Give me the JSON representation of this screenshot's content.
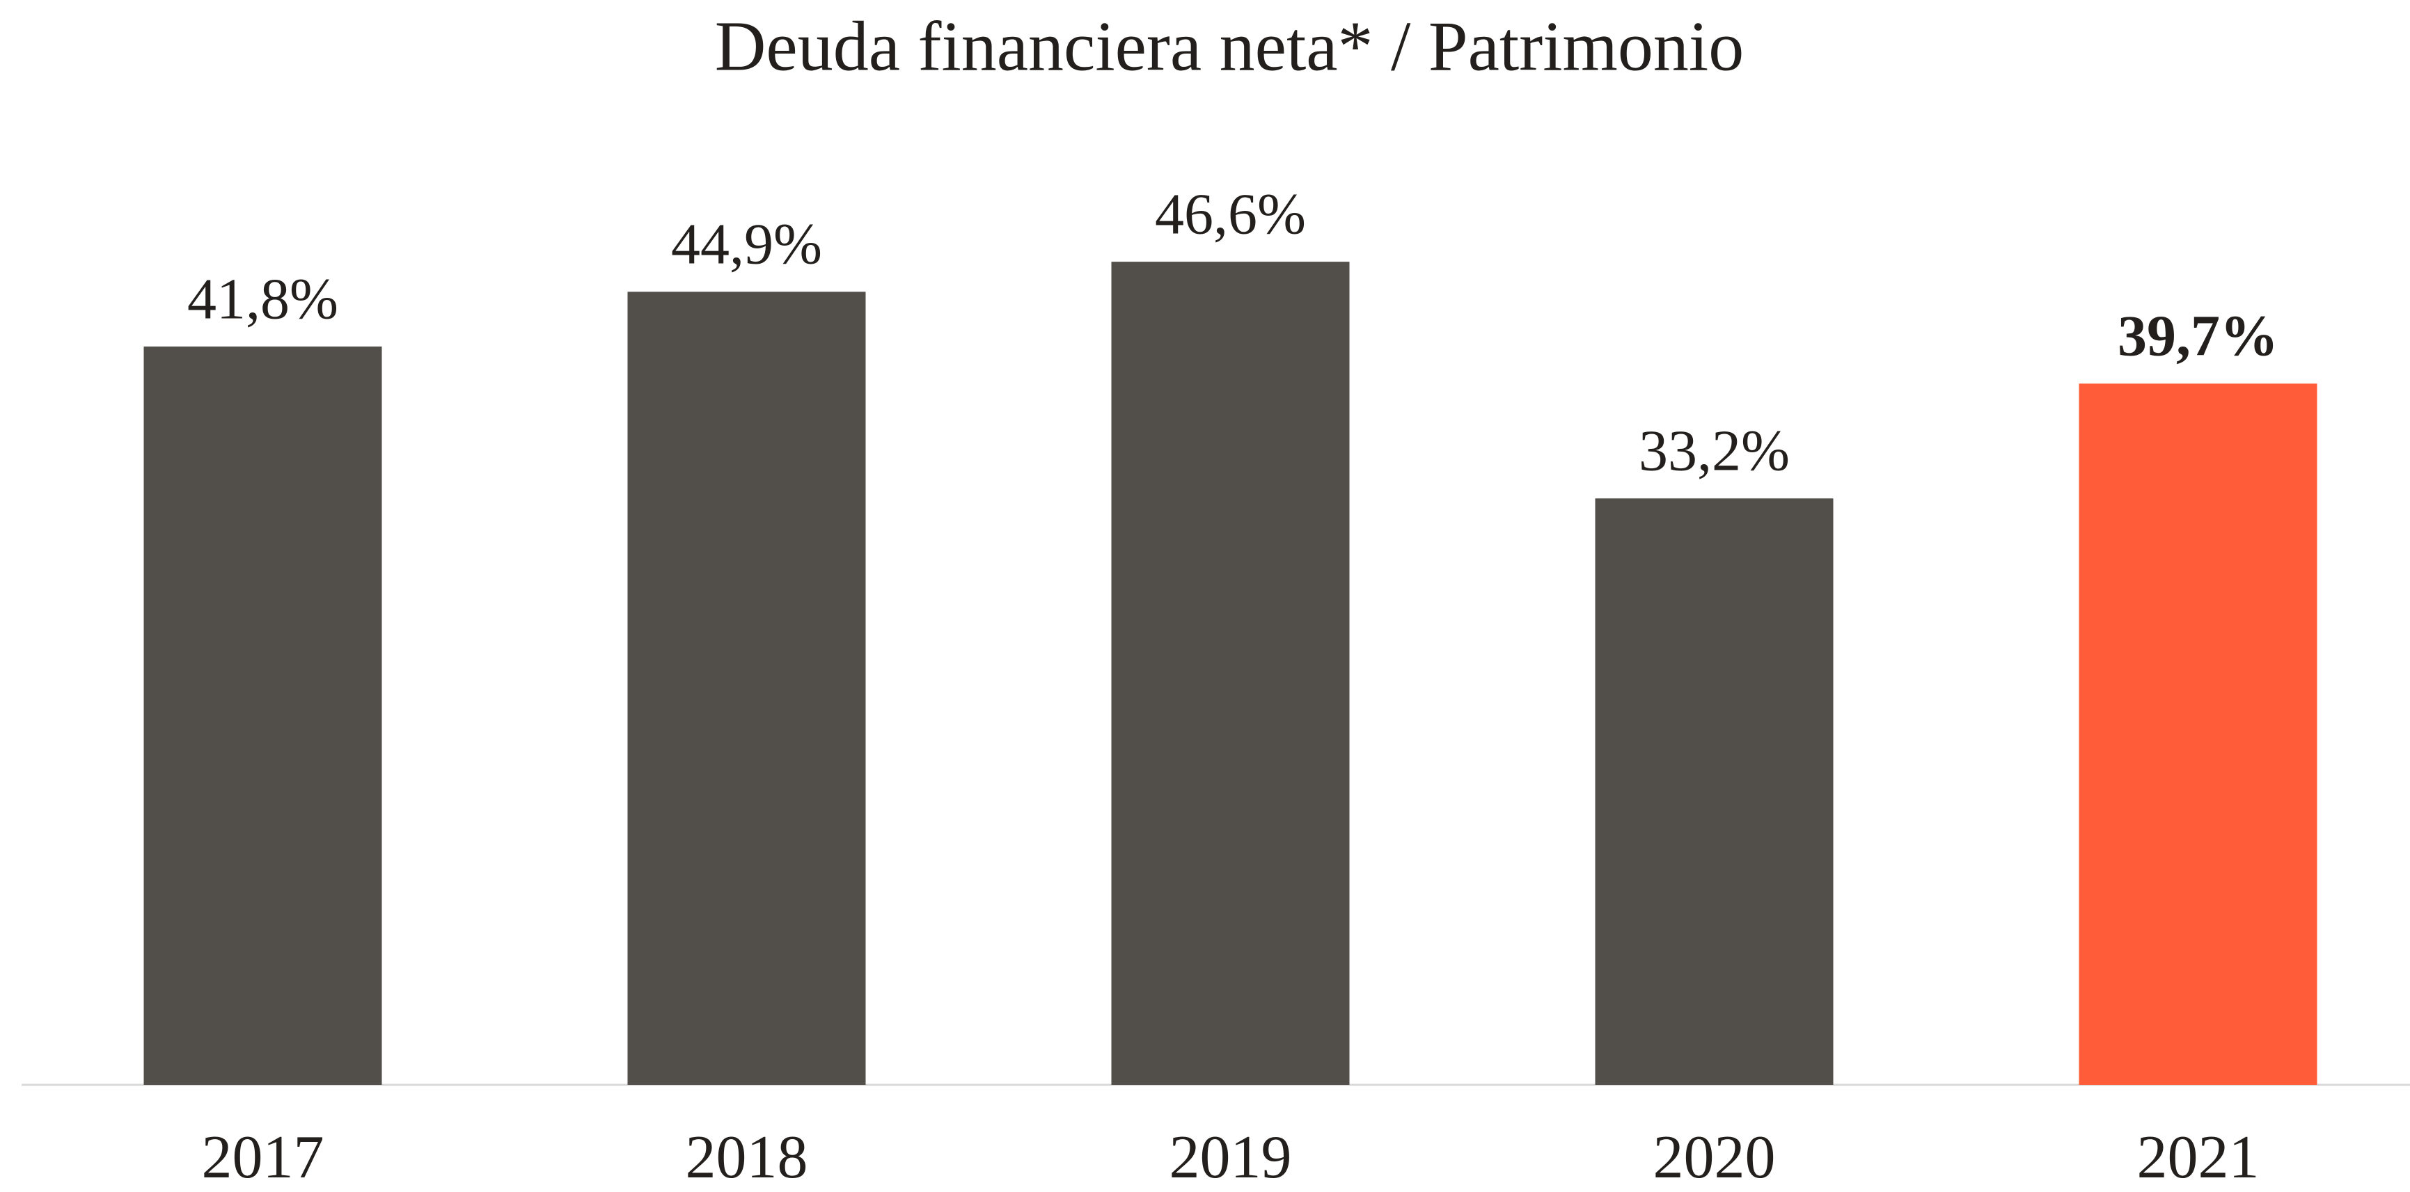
{
  "chart_data": {
    "type": "bar",
    "title": "Deuda financiera neta* / Patrimonio",
    "categories": [
      "2017",
      "2018",
      "2019",
      "2020",
      "2021"
    ],
    "values": [
      41.8,
      44.9,
      46.6,
      33.2,
      39.7
    ],
    "value_labels": [
      "41,8%",
      "44,9%",
      "46,6%",
      "33,2%",
      "39,7%"
    ],
    "colors": [
      "#524f4a",
      "#524f4a",
      "#524f4a",
      "#524f4a",
      "#ff5c39"
    ],
    "bold_labels": [
      false,
      false,
      false,
      false,
      true
    ],
    "ylim": [
      0,
      60
    ],
    "grid": false
  }
}
